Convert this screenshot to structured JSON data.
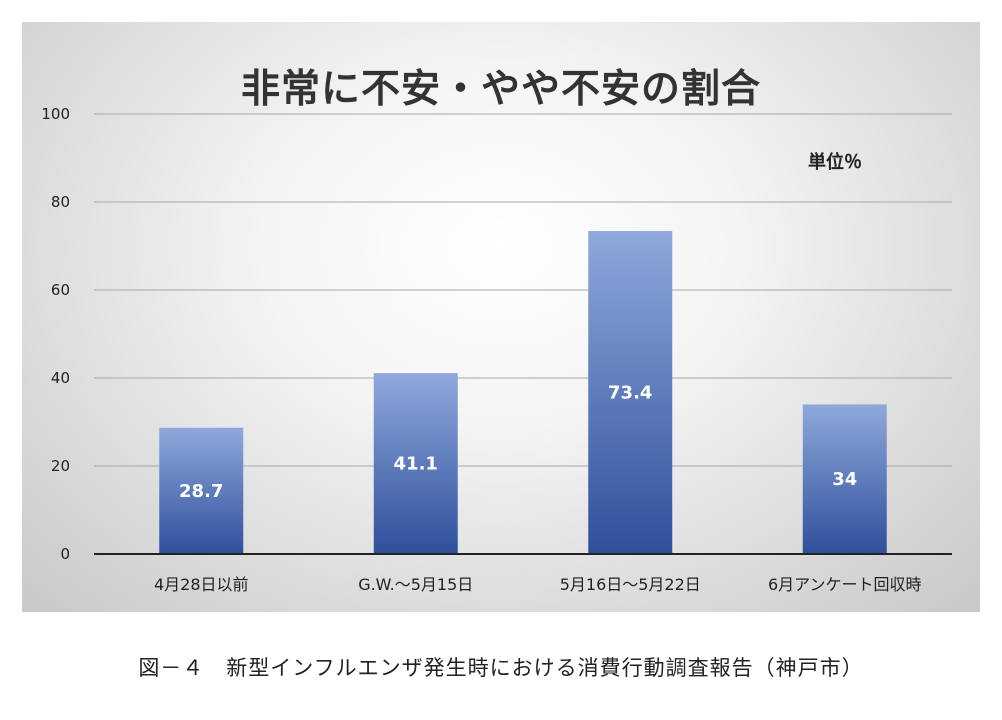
{
  "chart_data": {
    "type": "bar",
    "title": "非常に不安・やや不安の割合",
    "unit_label": "単位％",
    "categories": [
      "4月28日以前",
      "G.W.～5月15日",
      "5月16日～5月22日",
      "6月アンケート回収時"
    ],
    "values": [
      28.7,
      41.1,
      73.4,
      34
    ],
    "value_labels": [
      "28.7",
      "41.1",
      "73.4",
      "34"
    ],
    "yticks": [
      "0",
      "20",
      "40",
      "60",
      "80",
      "100"
    ],
    "ylim": [
      0,
      100
    ],
    "grid": true,
    "bar_color_top": "#8fa9dc",
    "bar_color_bottom": "#2f4f9b"
  },
  "caption": "図－４　新型インフルエンザ発生時における消費行動調査報告（神戸市）"
}
